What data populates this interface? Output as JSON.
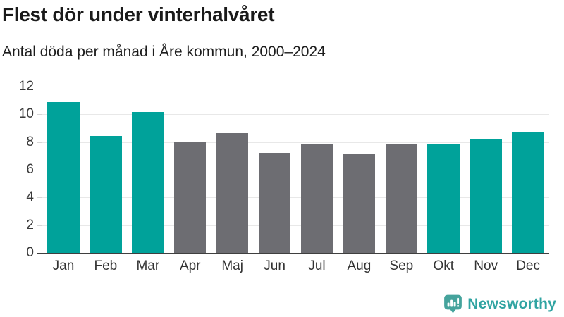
{
  "header": {
    "title": "Flest dör under vinterhalvåret",
    "subtitle": "Antal döda per månad i Åre kommun, 2000–2024"
  },
  "chart_data": {
    "type": "bar",
    "title": "Flest dör under vinterhalvåret",
    "subtitle": "Antal döda per månad i Åre kommun, 2000–2024",
    "categories": [
      "Jan",
      "Feb",
      "Mar",
      "Apr",
      "Maj",
      "Jun",
      "Jul",
      "Aug",
      "Sep",
      "Okt",
      "Nov",
      "Dec"
    ],
    "values": [
      10.9,
      8.45,
      10.15,
      8.05,
      8.65,
      7.2,
      7.9,
      7.15,
      7.9,
      7.85,
      8.2,
      8.7
    ],
    "bar_colors": [
      "#00a29a",
      "#00a29a",
      "#00a29a",
      "#6d6d72",
      "#6d6d72",
      "#6d6d72",
      "#6d6d72",
      "#6d6d72",
      "#6d6d72",
      "#00a29a",
      "#00a29a",
      "#00a29a"
    ],
    "xlabel": "",
    "ylabel": "",
    "ylim": [
      0,
      12
    ],
    "yticks": [
      0,
      2,
      4,
      6,
      8,
      10,
      12
    ],
    "grid": true,
    "legend_position": "none"
  },
  "footer": {
    "brand": "Newsworthy",
    "logo_icon": "newsworthy-bar-chart-speech-bubble-icon"
  },
  "colors": {
    "winter_bar": "#00a29a",
    "summer_bar": "#6d6d72",
    "brand_teal": "#30a4a2",
    "grid": "#e8e8e8",
    "axis": "#3f3f3f",
    "title_text": "#1a1a1a",
    "tick_text": "#3a3a3a"
  }
}
